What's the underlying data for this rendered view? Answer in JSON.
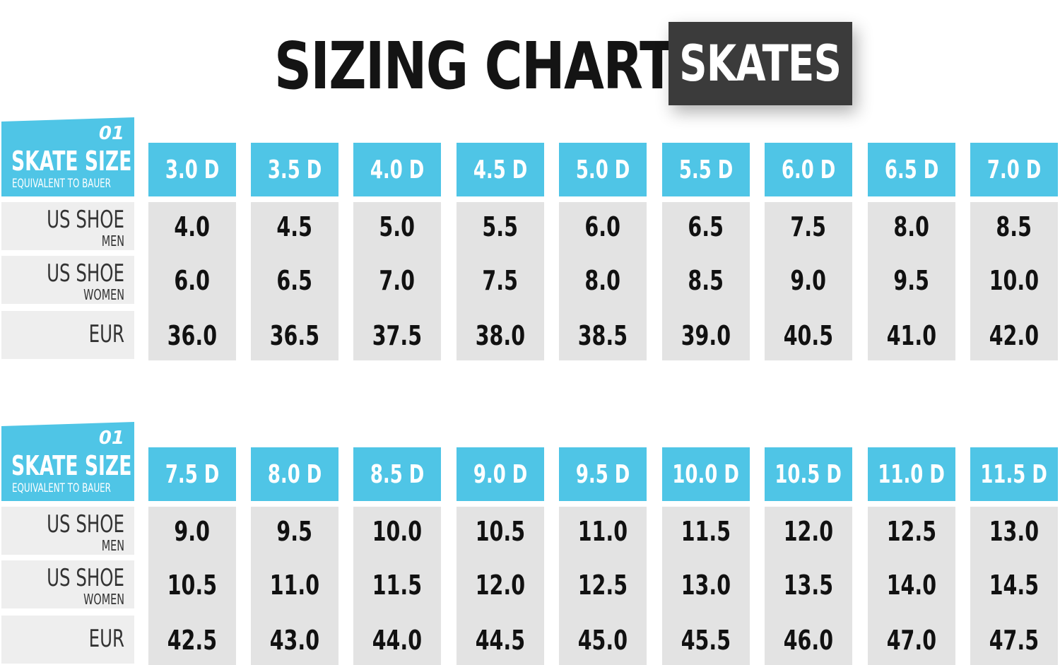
{
  "title": "SIZING CHART",
  "badge": "SKATES",
  "label_box": {
    "logo": "01",
    "skate_size": "SKATE SIZE",
    "equivalent": "EQUIVALENT TO BAUER"
  },
  "row_labels": [
    {
      "main": "US SHOE",
      "sub": "MEN"
    },
    {
      "main": "US SHOE",
      "sub": "WOMEN"
    },
    {
      "main": "EUR",
      "sub": ""
    }
  ],
  "tables": [
    {
      "sizes": [
        "3.0 D",
        "3.5 D",
        "4.0 D",
        "4.5 D",
        "5.0 D",
        "5.5 D",
        "6.0 D",
        "6.5 D",
        "7.0 D"
      ],
      "us_men": [
        "4.0",
        "4.5",
        "5.0",
        "5.5",
        "6.0",
        "6.5",
        "7.5",
        "8.0",
        "8.5"
      ],
      "us_women": [
        "6.0",
        "6.5",
        "7.0",
        "7.5",
        "8.0",
        "8.5",
        "9.0",
        "9.5",
        "10.0"
      ],
      "eur": [
        "36.0",
        "36.5",
        "37.5",
        "38.0",
        "38.5",
        "39.0",
        "40.5",
        "41.0",
        "42.0"
      ]
    },
    {
      "sizes": [
        "7.5 D",
        "8.0 D",
        "8.5 D",
        "9.0 D",
        "9.5 D",
        "10.0 D",
        "10.5 D",
        "11.0 D",
        "11.5 D"
      ],
      "us_men": [
        "9.0",
        "9.5",
        "10.0",
        "10.5",
        "11.0",
        "11.5",
        "12.0",
        "12.5",
        "13.0"
      ],
      "us_women": [
        "10.5",
        "11.0",
        "11.5",
        "12.0",
        "12.5",
        "13.0",
        "13.5",
        "14.0",
        "14.5"
      ],
      "eur": [
        "42.5",
        "43.0",
        "44.0",
        "44.5",
        "45.0",
        "45.5",
        "46.0",
        "47.0",
        "47.5"
      ]
    }
  ],
  "colors": {
    "accent": "#4fc5e6",
    "cell_bg": "#e3e3e3",
    "label_bg": "#eeeeee",
    "badge_bg": "#3b3b3b",
    "text_dark": "#111111"
  }
}
